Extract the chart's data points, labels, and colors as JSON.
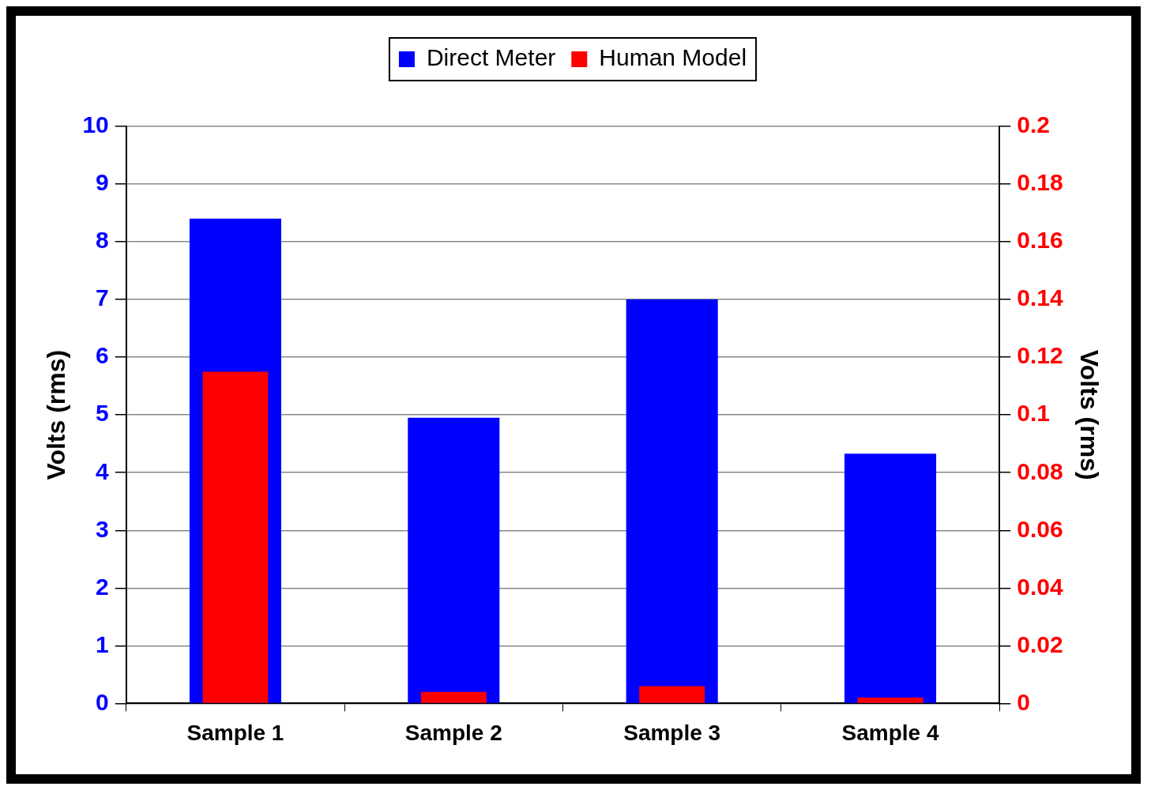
{
  "chart_data": {
    "type": "bar",
    "categories": [
      "Sample 1",
      "Sample 2",
      "Sample 3",
      "Sample 4"
    ],
    "series": [
      {
        "name": "Direct Meter",
        "color": "#0000ff",
        "values": [
          8.4,
          4.95,
          7.0,
          4.33
        ]
      },
      {
        "name": "Human Model",
        "color": "#ff0000",
        "axis": "y2",
        "values": [
          0.115,
          0.004,
          0.006,
          0.002
        ]
      }
    ],
    "ylabel": "Volts (rms)",
    "y2label": "Volts (rms)",
    "ylim": [
      0,
      10
    ],
    "yticks": [
      0,
      1,
      2,
      3,
      4,
      5,
      6,
      7,
      8,
      9,
      10
    ],
    "y2lim": [
      0,
      0.2
    ],
    "y2ticks": [
      0,
      0.02,
      0.04,
      0.06,
      0.08,
      0.1,
      0.12,
      0.14,
      0.16,
      0.18,
      0.2
    ],
    "grid": "y",
    "legend": "top"
  }
}
